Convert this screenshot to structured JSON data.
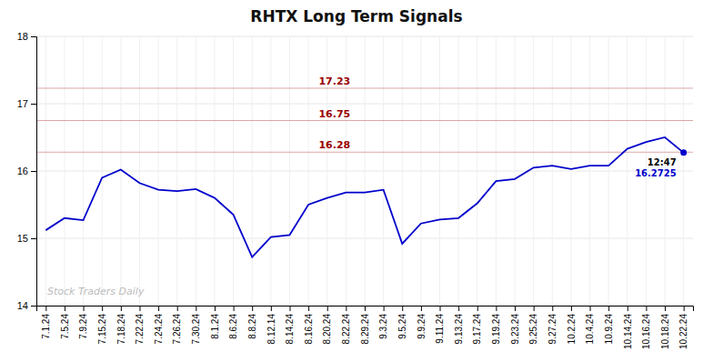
{
  "chart_data": {
    "type": "line",
    "title": "RHTX Long Term Signals",
    "categories": [
      "7.1.24",
      "7.5.24",
      "7.9.24",
      "7.15.24",
      "7.18.24",
      "7.22.24",
      "7.24.24",
      "7.26.24",
      "7.30.24",
      "8.1.24",
      "8.6.24",
      "8.8.24",
      "8.12.14",
      "8.14.24",
      "8.16.24",
      "8.20.24",
      "8.22.24",
      "8.29.24",
      "9.3.24",
      "9.5.24",
      "9.9.24",
      "9.11.24",
      "9.13.24",
      "9.17.24",
      "9.19.24",
      "9.23.24",
      "9.25.24",
      "9.27.24",
      "10.2.24",
      "10.4.24",
      "10.9.24",
      "10.14.24",
      "10.16.24",
      "10.18.24",
      "10.22.24"
    ],
    "values": [
      15.12,
      15.3,
      15.27,
      15.9,
      16.02,
      15.82,
      15.72,
      15.7,
      15.73,
      15.6,
      15.35,
      14.72,
      15.02,
      15.05,
      15.5,
      15.6,
      15.68,
      15.68,
      15.72,
      14.92,
      15.22,
      15.28,
      15.3,
      15.52,
      15.85,
      15.88,
      16.05,
      16.08,
      16.03,
      16.08,
      16.08,
      16.33,
      16.43,
      16.5,
      16.2725
    ],
    "color": "#0000cc",
    "ylim": [
      14,
      18
    ],
    "yticks": [
      14,
      15,
      16,
      17,
      18
    ],
    "grid": true,
    "reference_lines": [
      {
        "value": 17.23,
        "label": "17.23",
        "color": "#990000"
      },
      {
        "value": 16.75,
        "label": "16.75",
        "color": "#990000"
      },
      {
        "value": 16.28,
        "label": "16.28",
        "color": "#990000"
      }
    ],
    "end_marker": {
      "time": "12:47",
      "value": 16.2725,
      "color": "#0000cc"
    },
    "watermark": "Stock Traders Daily"
  }
}
